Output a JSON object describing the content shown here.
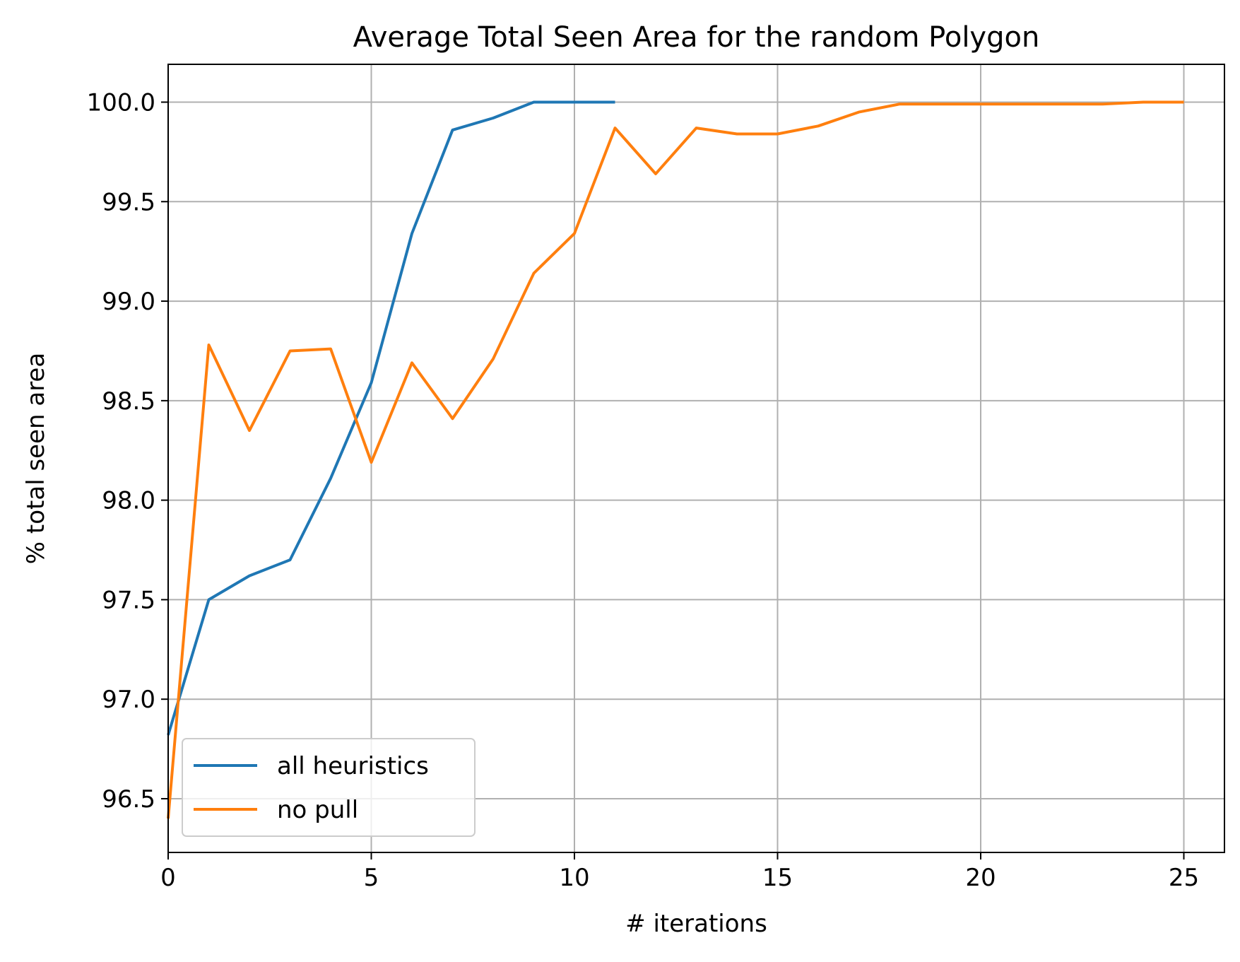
{
  "chart_data": {
    "type": "line",
    "title": "Average Total Seen Area for the random Polygon",
    "xlabel": "# iterations",
    "ylabel": "% total seen area",
    "xlim": [
      0,
      26
    ],
    "ylim": [
      96.23,
      100.19
    ],
    "xticks": [
      0,
      5,
      10,
      15,
      20,
      25
    ],
    "xtick_labels": [
      "0",
      "5",
      "10",
      "15",
      "20",
      "25"
    ],
    "yticks": [
      96.5,
      97.0,
      97.5,
      98.0,
      98.5,
      99.0,
      99.5,
      100.0
    ],
    "ytick_labels": [
      "96.5",
      "97.0",
      "97.5",
      "98.0",
      "98.5",
      "99.0",
      "99.5",
      "100.0"
    ],
    "grid": true,
    "legend_position": "lower-left",
    "series": [
      {
        "name": "all heuristics",
        "color": "#1f77b4",
        "x": [
          0,
          1,
          2,
          3,
          4,
          5,
          6,
          7,
          8,
          9,
          10,
          11
        ],
        "values": [
          96.82,
          97.5,
          97.62,
          97.7,
          98.11,
          98.59,
          99.34,
          99.86,
          99.92,
          100.0,
          100.0,
          100.0
        ]
      },
      {
        "name": "no pull",
        "color": "#ff7f0e",
        "x": [
          0,
          1,
          2,
          3,
          4,
          5,
          6,
          7,
          8,
          9,
          10,
          11,
          12,
          13,
          14,
          15,
          16,
          17,
          18,
          19,
          20,
          21,
          22,
          23,
          24,
          25
        ],
        "values": [
          96.4,
          98.78,
          98.35,
          98.75,
          98.76,
          98.19,
          98.69,
          98.41,
          98.71,
          99.14,
          99.34,
          99.87,
          99.64,
          99.87,
          99.84,
          99.84,
          99.88,
          99.95,
          99.99,
          99.99,
          99.99,
          99.99,
          99.99,
          99.99,
          100.0,
          100.0
        ]
      }
    ]
  }
}
